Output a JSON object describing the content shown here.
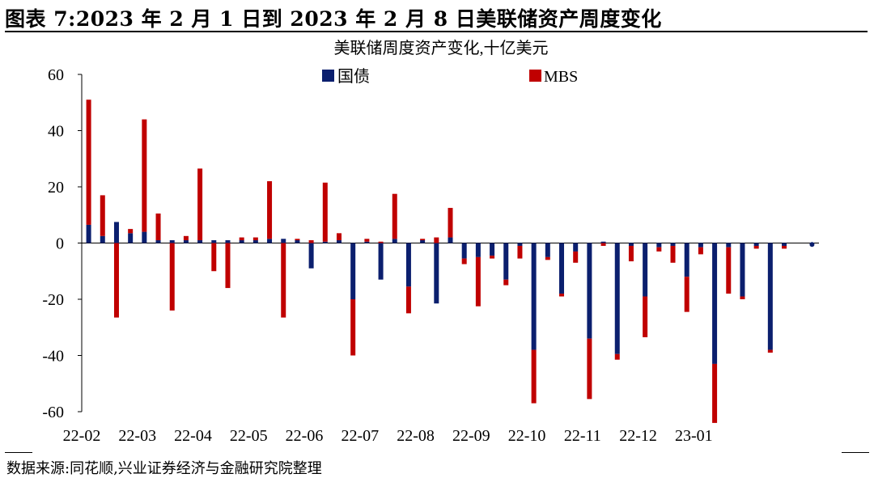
{
  "figure": {
    "title": "图表 7:2023 年 2 月 1 日到 2023 年 2 月 8 日美联储资产周度变化",
    "source": "数据来源:同花顺,兴业证券经济与金融研究院整理"
  },
  "chart_data": {
    "type": "bar",
    "stacked": true,
    "title": "美联储周度资产变化,十亿美元",
    "xlabel": "",
    "ylabel": "",
    "ylim": [
      -60,
      60
    ],
    "yticks": [
      60,
      40,
      20,
      0,
      -20,
      -40,
      -60
    ],
    "grid": false,
    "legend_placement": "top-center",
    "x_tick_labels": [
      "22-02",
      "22-03",
      "22-04",
      "22-05",
      "22-06",
      "22-07",
      "22-08",
      "22-09",
      "22-10",
      "22-11",
      "22-12",
      "23-01"
    ],
    "x_tick_positions": [
      0,
      4,
      8,
      12,
      16,
      20,
      24,
      28,
      32,
      36,
      40,
      44
    ],
    "categories": [
      "1",
      "2",
      "3",
      "4",
      "5",
      "6",
      "7",
      "8",
      "9",
      "10",
      "11",
      "12",
      "13",
      "14",
      "15",
      "16",
      "17",
      "18",
      "19",
      "20",
      "21",
      "22",
      "23",
      "24",
      "25",
      "26",
      "27",
      "28",
      "29",
      "30",
      "31",
      "32",
      "33",
      "34",
      "35",
      "36",
      "37",
      "38",
      "39",
      "40",
      "41",
      "42",
      "43",
      "44",
      "45",
      "46",
      "47",
      "48",
      "49",
      "50",
      "51",
      "52",
      "53"
    ],
    "series": [
      {
        "name": "国债",
        "color": "#0b1f6e",
        "values": [
          6.5,
          2.5,
          7.5,
          3.5,
          4.0,
          1.0,
          1.0,
          1.0,
          1.0,
          1.0,
          1.0,
          1.0,
          1.0,
          1.5,
          1.5,
          1.0,
          -9.0,
          0.5,
          1.0,
          -20.0,
          0.5,
          -13.0,
          1.5,
          -15.5,
          1.0,
          -21.5,
          2.0,
          -5.5,
          -5.0,
          -4.5,
          -13.0,
          -1.0,
          -38.0,
          -5.0,
          -18.0,
          -3.0,
          -34.0,
          0.5,
          -39.5,
          -1.0,
          -19.0,
          -1.5,
          -1.0,
          -12.0,
          -1.5,
          -43.0,
          -1.5,
          -19.0,
          -1.0,
          -38.0,
          -1.0,
          0,
          0
        ],
        "marker_last": -1.0
      },
      {
        "name": "MBS",
        "color": "#c00000",
        "values": [
          44.5,
          14.5,
          -26.5,
          1.5,
          40.0,
          9.5,
          -24.0,
          1.5,
          25.5,
          -10.0,
          -16.0,
          1.0,
          1.0,
          20.5,
          -26.5,
          0.5,
          1.0,
          21.0,
          2.5,
          -20.0,
          1.0,
          0.5,
          16.0,
          -9.5,
          0.5,
          2.0,
          10.5,
          -2.0,
          -17.5,
          -1.0,
          -2.0,
          -4.5,
          -19.0,
          -1.0,
          -1.0,
          -4.0,
          -21.5,
          -1.0,
          -2.0,
          -5.5,
          -14.5,
          -1.5,
          -6.0,
          -12.5,
          -2.5,
          -21.0,
          -16.5,
          -1.0,
          -1.0,
          -1.0,
          -1.0,
          0,
          0
        ]
      }
    ]
  }
}
